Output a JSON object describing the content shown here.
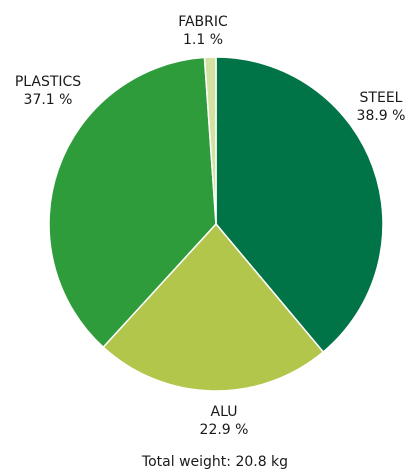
{
  "chart_data": {
    "type": "pie",
    "slices": [
      {
        "name": "STEEL",
        "value": 38.9,
        "value_label": "38.9 %",
        "color": "#007446"
      },
      {
        "name": "ALU",
        "value": 22.9,
        "value_label": "22.9 %",
        "color": "#b2c64b"
      },
      {
        "name": "PLASTICS",
        "value": 37.1,
        "value_label": "37.1 %",
        "color": "#2f9c3c"
      },
      {
        "name": "FABRIC",
        "value": 1.1,
        "value_label": "1.1 %",
        "color": "#d3e1a1"
      }
    ],
    "start_angle_deg": 0,
    "direction": "clockwise",
    "footer": "Total weight: 20.8 kg"
  }
}
